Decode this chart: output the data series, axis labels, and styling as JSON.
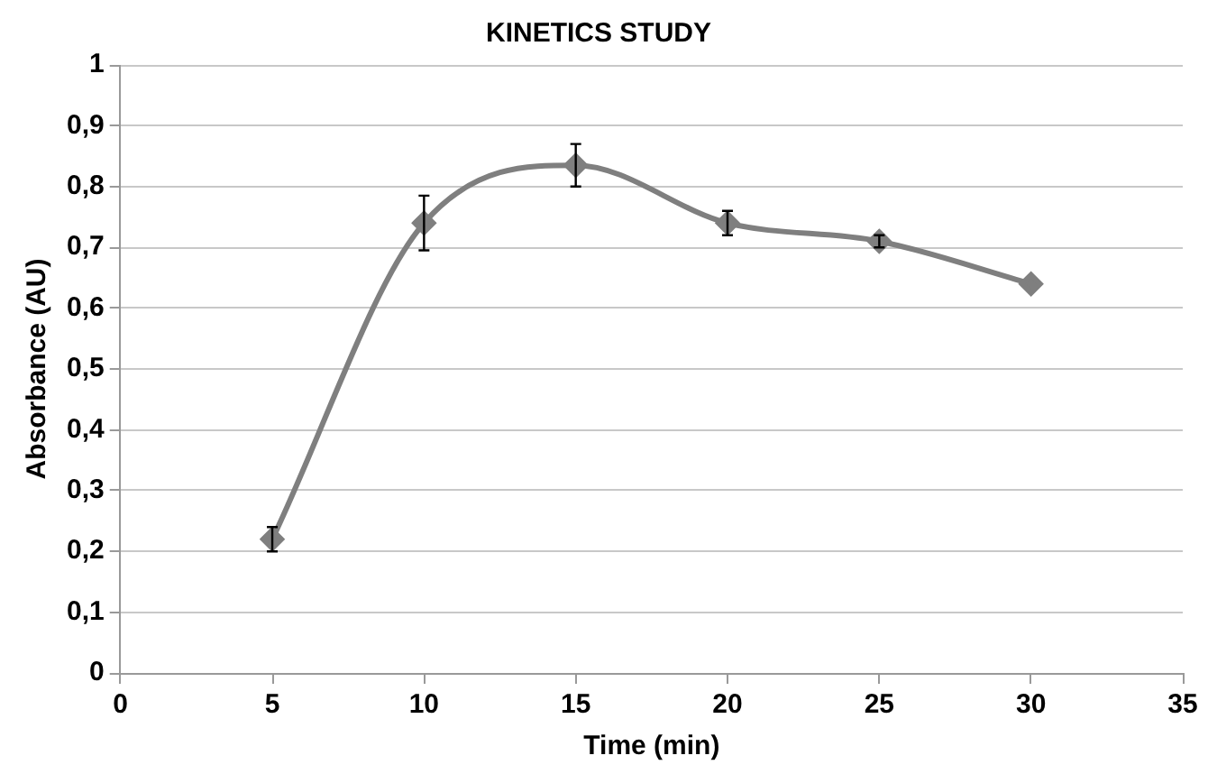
{
  "chart_data": {
    "type": "line",
    "title": "KINETICS STUDY",
    "xlabel": "Time (min)",
    "ylabel": "Absorbance (AU)",
    "x": [
      5,
      10,
      15,
      20,
      25,
      30
    ],
    "series": [
      {
        "color": "#7f7f7f",
        "values": [
          0.22,
          0.74,
          0.835,
          0.74,
          0.71,
          0.64
        ],
        "errors": [
          0.02,
          0.045,
          0.035,
          0.02,
          0.01,
          null
        ]
      }
    ],
    "xlim": [
      0,
      35
    ],
    "xticks": [
      0,
      5,
      10,
      15,
      20,
      25,
      30,
      35
    ],
    "ylim": [
      0,
      1
    ],
    "yticks": [
      {
        "value": 0,
        "label": "0"
      },
      {
        "value": 0.1,
        "label": "0,1"
      },
      {
        "value": 0.2,
        "label": "0,2"
      },
      {
        "value": 0.3,
        "label": "0,3"
      },
      {
        "value": 0.4,
        "label": "0,4"
      },
      {
        "value": 0.5,
        "label": "0,5"
      },
      {
        "value": 0.6,
        "label": "0,6"
      },
      {
        "value": 0.7,
        "label": "0,7"
      },
      {
        "value": 0.8,
        "label": "0,8"
      },
      {
        "value": 0.9,
        "label": "0,9"
      },
      {
        "value": 1,
        "label": "1"
      }
    ],
    "grid": "y",
    "legend": false,
    "marker": "diamond",
    "line_style": "solid"
  }
}
